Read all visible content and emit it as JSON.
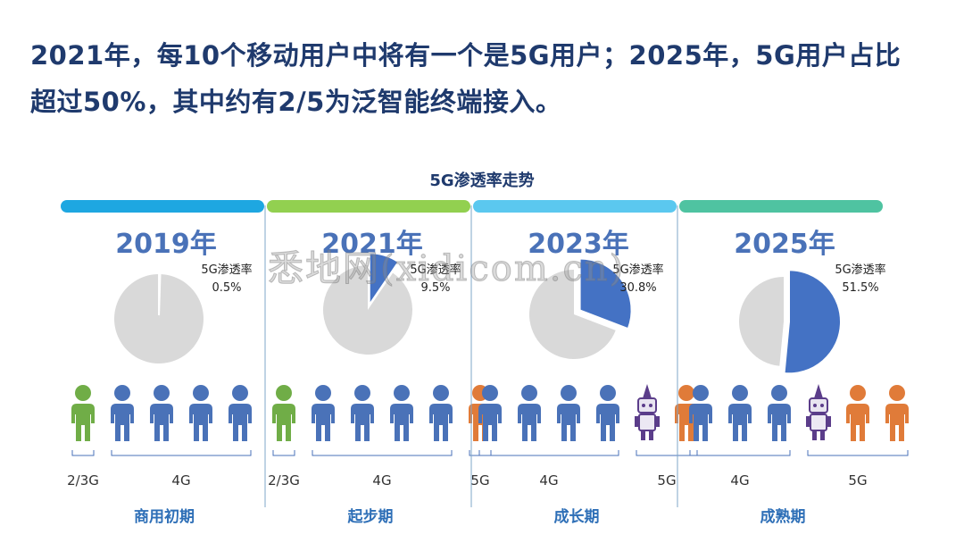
{
  "headline": {
    "line1": "2021年，每10个移动用户中将有一个是5G用户；2025年，5G用户占比",
    "line2": "超过50%，其中约有2/5为泛智能终端接入。"
  },
  "watermark": "悉地网(xidicom.cn)",
  "colors": {
    "slice_5g": "#4472c4",
    "slice_rest": "#d9d9d9",
    "year_text": "#4a72b8",
    "person_2g3g": "#70ad47",
    "person_4g": "#4a72b8",
    "person_5g": "#e07b39",
    "robot": "#5b3d8a",
    "stage_text": "#2e6fb7"
  },
  "chart_data": {
    "type": "pie",
    "title": "5G渗透率走势",
    "slice_label": "5G渗透率",
    "panels": [
      {
        "year": "2019年",
        "value": 0.5,
        "value_label": "0.5%",
        "band_color": "#1ea7e1",
        "stage": "商用初期",
        "people": [
          "2/3G",
          "4G",
          "4G",
          "4G",
          "4G"
        ],
        "groups": [
          {
            "label": "2/3G",
            "from": 0,
            "to": 0
          },
          {
            "label": "4G",
            "from": 1,
            "to": 4
          }
        ]
      },
      {
        "year": "2021年",
        "value": 9.5,
        "value_label": "9.5%",
        "band_color": "#92d050",
        "stage": "起步期",
        "people": [
          "2/3G",
          "4G",
          "4G",
          "4G",
          "4G",
          "5G"
        ],
        "groups": [
          {
            "label": "2/3G",
            "from": 0,
            "to": 0
          },
          {
            "label": "4G",
            "from": 1,
            "to": 4
          },
          {
            "label": "5G",
            "from": 5,
            "to": 5
          }
        ]
      },
      {
        "year": "2023年",
        "value": 30.8,
        "value_label": "30.8%",
        "band_color": "#5bc8ef",
        "stage": "成长期",
        "people": [
          "4G",
          "4G",
          "4G",
          "4G",
          "robot",
          "5G"
        ],
        "groups": [
          {
            "label": "4G",
            "from": 0,
            "to": 3
          },
          {
            "label": "5G",
            "from": 4,
            "to": 5
          }
        ]
      },
      {
        "year": "2025年",
        "value": 51.5,
        "value_label": "51.5%",
        "band_color": "#4fc3a1",
        "stage": "成熟期",
        "people": [
          "4G",
          "4G",
          "4G",
          "robot",
          "5G",
          "5G"
        ],
        "groups": [
          {
            "label": "4G",
            "from": 0,
            "to": 2
          },
          {
            "label": "5G",
            "from": 3,
            "to": 5
          }
        ]
      }
    ]
  }
}
